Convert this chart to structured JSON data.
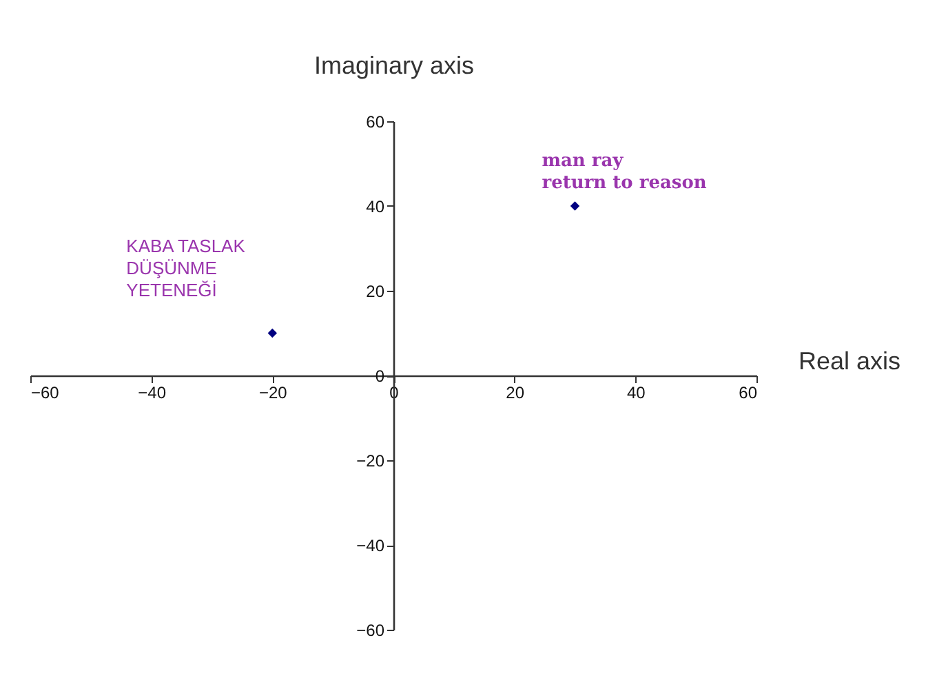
{
  "chart_data": {
    "type": "scatter",
    "xlabel": "Real axis",
    "ylabel": "Imaginary axis",
    "x": [
      -20,
      30
    ],
    "series": [
      {
        "color": "#000080",
        "values": [
          10,
          40
        ]
      }
    ],
    "marker": "diamond",
    "xlim": [
      -60,
      60
    ],
    "xticks": [
      -60,
      -40,
      -20,
      0,
      20,
      40,
      60
    ],
    "ylim": [
      -60,
      60
    ],
    "yticks": [
      -60,
      -40,
      -20,
      0,
      20,
      40,
      60
    ],
    "grid": false,
    "annotations": [
      {
        "text": "KABA TASLAK\nDÜŞÜNME\nYETENEĞİ",
        "x": -20,
        "y": 10
      },
      {
        "text": "man ray\nreturn to reason",
        "x": 30,
        "y": 40
      }
    ]
  }
}
